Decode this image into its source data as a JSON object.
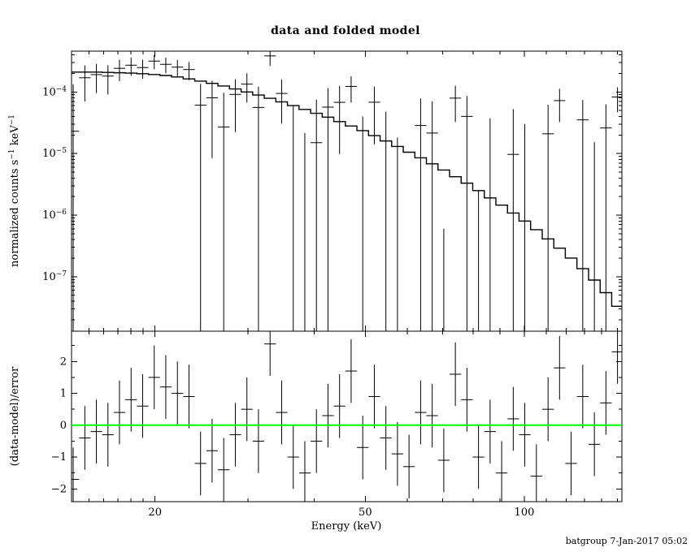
{
  "footer": "batgroup 7-Jan-2017 05:02",
  "colors": {
    "background": "#ffffff",
    "foreground": "#000000",
    "model_line": "#000000",
    "data": "#000000",
    "zero_line": "#00ff00"
  },
  "chart_data": {
    "type": "scatter",
    "title": "data and folded model",
    "xlabel": "Energy (keV)",
    "xscale": "log",
    "xlim": [
      13.9,
      153
    ],
    "x_major_ticks": [
      20,
      50,
      100
    ],
    "x_major_tick_labels": [
      "20",
      "50",
      "100"
    ],
    "x_minor_ticks": [
      15,
      16,
      17,
      18,
      19,
      30,
      40,
      60,
      70,
      80,
      90,
      110,
      120,
      130,
      140,
      150
    ],
    "x": [
      14.0,
      14.73,
      15.49,
      16.29,
      17.13,
      18.02,
      18.95,
      19.93,
      20.96,
      22.05,
      23.19,
      24.39,
      25.65,
      26.98,
      28.38,
      29.85,
      31.39,
      33.02,
      34.73,
      36.53,
      38.42,
      40.41,
      42.5,
      44.7,
      47.01,
      49.45,
      52.01,
      54.7,
      57.53,
      60.51,
      63.64,
      66.93,
      70.4,
      74.04,
      77.87,
      81.9,
      86.14,
      90.6,
      95.29,
      100.2,
      105.4,
      110.9,
      116.6,
      122.6,
      129.0,
      135.7,
      142.7,
      150.1
    ],
    "panels": [
      {
        "name": "spectrum",
        "ylabel": "normalized counts s^-1 keV^-1",
        "yscale": "log",
        "ylim": [
          1.3e-08,
          0.00046
        ],
        "y_ticks": [
          {
            "value": 0.0001,
            "label": "10^-4"
          },
          {
            "value": 1e-05,
            "label": "10^-5"
          },
          {
            "value": 1e-06,
            "label": "10^-6"
          },
          {
            "value": 1e-07,
            "label": "10^-7"
          }
        ],
        "series": [
          {
            "name": "folded model",
            "type": "step",
            "values": [
              0.00021,
              0.00021,
              0.00021,
              0.000208,
              0.000205,
              0.000202,
              0.000198,
              0.000192,
              0.000185,
              0.000175,
              0.000163,
              0.00015,
              0.000138,
              0.000125,
              0.000112,
              0.0001,
              8.9e-05,
              7.9e-05,
              6.9e-05,
              6e-05,
              5.2e-05,
              4.5e-05,
              3.9e-05,
              3.3e-05,
              2.8e-05,
              2.35e-05,
              1.95e-05,
              1.6e-05,
              1.3e-05,
              1.05e-05,
              8.5e-06,
              6.8e-06,
              5.4e-06,
              4.2e-06,
              3.3e-06,
              2.5e-06,
              1.9e-06,
              1.45e-06,
              1.08e-06,
              8e-07,
              5.8e-07,
              4.1e-07,
              2.9e-07,
              2e-07,
              1.35e-07,
              8.8e-08,
              5.5e-08,
              3.3e-08
            ]
          },
          {
            "name": "data",
            "type": "errorbar",
            "values": [
              2.3e-05,
              0.00017,
              0.000191,
              0.000181,
              0.000242,
              0.000272,
              0.000249,
              0.000317,
              0.000281,
              0.000253,
              0.000231,
              6.1e-05,
              8.04e-05,
              2.7e-05,
              9.13e-05,
              0.000134,
              5.6e-05,
              0.000385,
              9.46e-05,
              -3e-06,
              -3.95e-05,
              1.5e-05,
              5.67e-05,
              6.78e-05,
              0.000123,
              -1.5e-05,
              6.81e-05,
              -5.2e-06,
              -3.38e-05,
              -5.58e-05,
              2.85e-05,
              2.15e-05,
              -4.74e-05,
              7.94e-05,
              4.01e-05,
              -4.25e-05,
              -6.9e-06,
              -6.45e-05,
              9.68e-06,
              -1.18e-05,
              -6.5e-05,
              2.09e-05,
              7.23e-05,
              -4.66e-05,
              3.52e-05,
              -2.27e-05,
              2.6e-05,
              8.28e-05
            ],
            "errors": [
              0.00011,
              0.0001,
              9.5e-05,
              9e-05,
              9.2e-05,
              8.8e-05,
              8.5e-05,
              8.3e-05,
              8e-05,
              7.8e-05,
              7.6e-05,
              7.4e-05,
              7.2e-05,
              7e-05,
              6.9e-05,
              6.7e-05,
              6.6e-05,
              0.00012,
              6.4e-05,
              6.3e-05,
              6.1e-05,
              6e-05,
              5.9e-05,
              5.8e-05,
              5.6e-05,
              5.5e-05,
              5.4e-05,
              5.3e-05,
              5.2e-05,
              5.1e-05,
              5e-05,
              4.9e-05,
              4.8e-05,
              4.7e-05,
              4.6e-05,
              4.5e-05,
              4.4e-05,
              4.4e-05,
              4.3e-05,
              4.2e-05,
              4.1e-05,
              4.1e-05,
              4e-05,
              3.9e-05,
              3.9e-05,
              3.8e-05,
              3.7e-05,
              3.6e-05
            ]
          }
        ]
      },
      {
        "name": "residuals",
        "ylabel": "(data-model)/error",
        "yscale": "linear",
        "ylim": [
          -2.4,
          2.95
        ],
        "y_ticks": [
          {
            "value": -2,
            "label": "-2"
          },
          {
            "value": -1,
            "label": "-1"
          },
          {
            "value": 0,
            "label": "0"
          },
          {
            "value": 1,
            "label": "1"
          },
          {
            "value": 2,
            "label": "2"
          }
        ],
        "zero_line": {
          "value": 0,
          "color": "#00ff00"
        },
        "series": [
          {
            "name": "(data-model)/error",
            "type": "errorbar",
            "values": [
              -1.7,
              -0.4,
              -0.2,
              -0.3,
              0.4,
              0.8,
              0.6,
              1.5,
              1.2,
              1.0,
              0.9,
              -1.2,
              -0.8,
              -1.4,
              -0.3,
              0.5,
              -0.5,
              2.55,
              0.4,
              -1.0,
              -1.5,
              -0.5,
              0.3,
              0.6,
              1.7,
              -0.7,
              0.9,
              -0.4,
              -0.9,
              -1.3,
              0.4,
              0.3,
              -1.1,
              1.6,
              0.8,
              -1.0,
              -0.2,
              -1.5,
              0.2,
              -0.3,
              -1.6,
              0.5,
              1.8,
              -1.2,
              0.9,
              -0.6,
              0.7,
              2.3
            ],
            "errors": 1
          }
        ]
      }
    ]
  }
}
